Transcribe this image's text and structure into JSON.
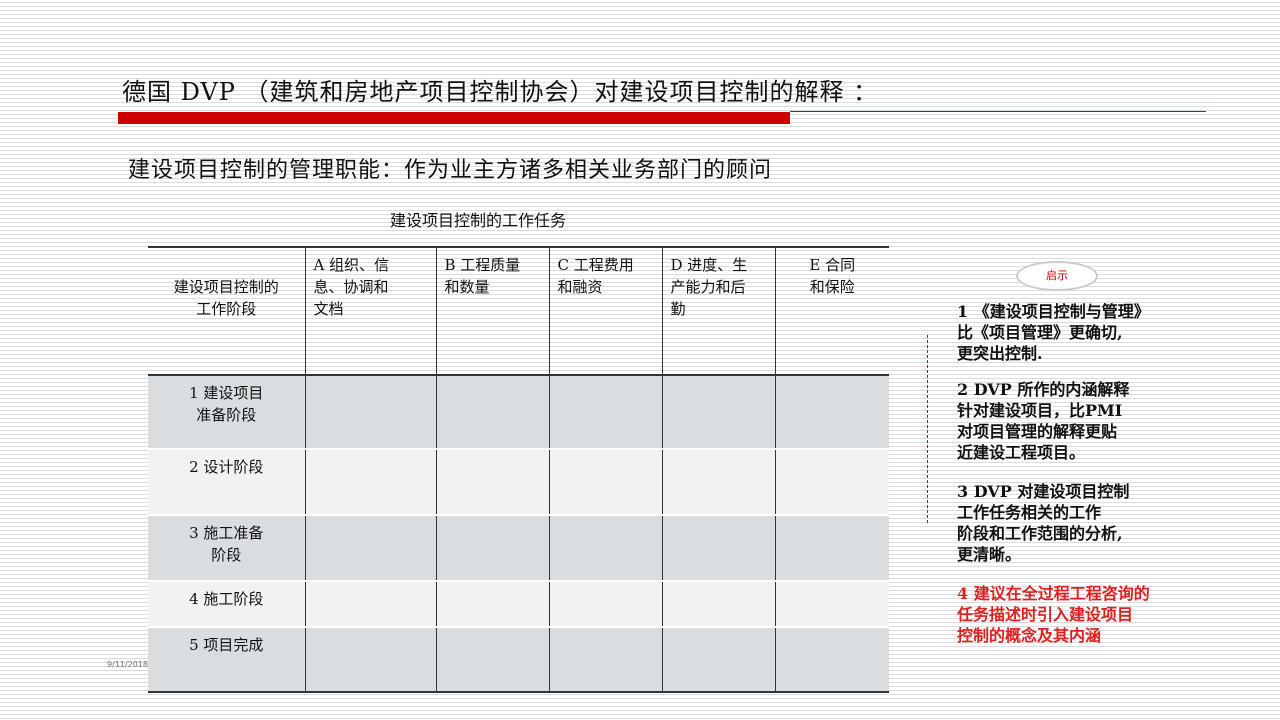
{
  "title": "德国  DVP （建筑和房地产项目控制协会）对建设项目控制的解释 ：",
  "subtitle": "建设项目控制的管理职能：作为业主方诸多相关业务部门的顾问",
  "table_caption": "建设项目控制的工作任务",
  "table": {
    "headers": [
      "建设项目控制的\n工作阶段",
      "A 组织、信\n息、协调和\n文档",
      "B 工程质量\n和数量",
      "C 工程费用\n和融资",
      "D 进度、生\n产能力和后\n勤",
      "E 合同\n和保险"
    ],
    "rows": [
      "1 建设项目\n准备阶段",
      "2 设计阶段",
      "3 施工准备\n阶段",
      "4 施工阶段",
      "5 项目完成"
    ]
  },
  "insight": {
    "label": "启示",
    "notes": [
      "1 《建设项目控制与管理》\n    比《项目管理》更确切,\n    更突出控制.",
      "2 DVP 所作的内涵解释\n   针对建设项目，比PMI\n   对项目管理的解释更贴\n   近建设工程项目。",
      "3 DVP 对建设项目控制\n   工作任务相关的工作\n   阶段和工作范围的分析,\n   更清晰。",
      "4 建议在全过程工程咨询的\n  任务描述时引入建设项目\n  控制的概念及其内涵"
    ],
    "highlight_color": "#e02020"
  },
  "date": "9/11/2018",
  "colors": {
    "accent": "#cc0000"
  }
}
